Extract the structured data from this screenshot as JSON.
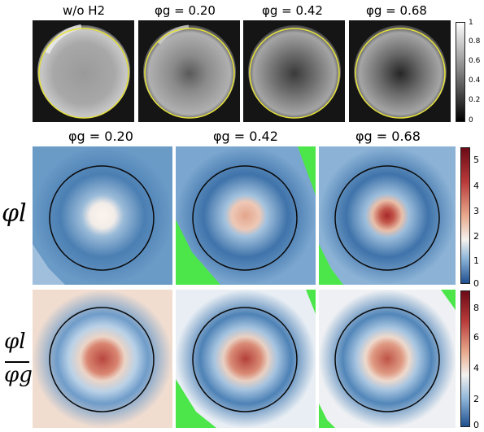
{
  "top_row": {
    "titles": [
      "w/o H2",
      "φg = 0.20",
      "φg = 0.42",
      "φg = 0.68"
    ],
    "colorbar_ticks": [
      "1",
      "0.8",
      "0.6",
      "0.4",
      "0.2",
      "0"
    ],
    "ring_color": "#e6e23a"
  },
  "mid_row": {
    "titles": [
      "φg = 0.20",
      "φg = 0.42",
      "φg = 0.68"
    ],
    "row_label": "φl",
    "colorbar_ticks": [
      "5",
      "4",
      "3",
      "2",
      "1",
      "0"
    ]
  },
  "bot_row": {
    "row_label_num": "φl",
    "row_label_den": "φg",
    "colorbar_ticks": [
      "8",
      "6",
      "4",
      "2",
      "0"
    ]
  },
  "colors": {
    "diverging_low": "#1f4f8f",
    "diverging_mid": "#f4f2ef",
    "diverging_high": "#8b1219",
    "mask_green": "#4de64a"
  }
}
